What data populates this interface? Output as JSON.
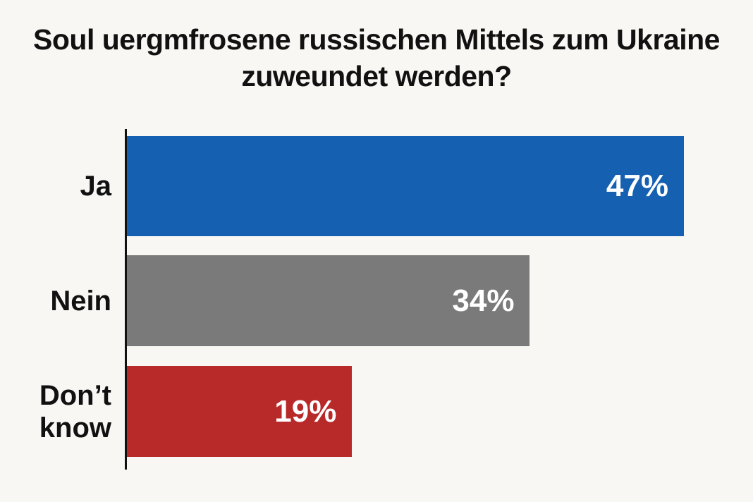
{
  "chart_data": {
    "type": "bar",
    "orientation": "horizontal",
    "title": "Soul uergmfrosene russischen Mittels zum Ukraine zuweundet werden?",
    "categories": [
      "Ja",
      "Nein",
      "Don’t\nknow"
    ],
    "values": [
      47,
      34,
      19
    ],
    "value_labels": [
      "47%",
      "34%",
      "19%"
    ],
    "colors": [
      "#1560b0",
      "#7a7a7a",
      "#b82a2a"
    ],
    "grid": false,
    "legend": "none"
  }
}
